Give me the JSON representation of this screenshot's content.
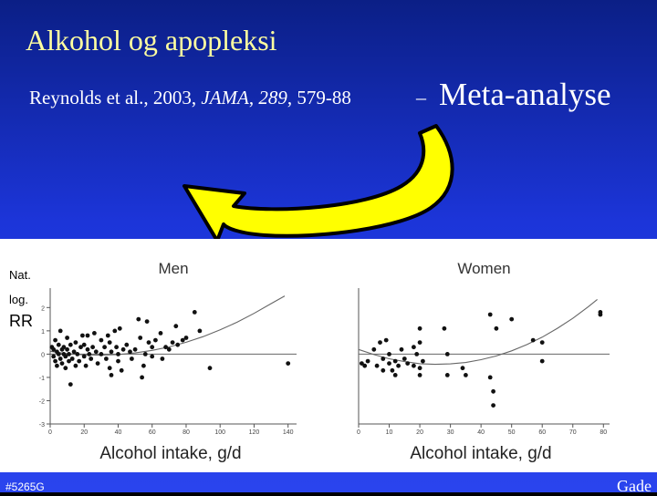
{
  "slide": {
    "title": "Alkohol og apopleksi",
    "reference": {
      "authors": "Reynolds et al., 2003, ",
      "journal": "JAMA",
      "sep1": ", ",
      "volume": "289",
      "pages": ", 579-88"
    },
    "dash": "–",
    "meta_label": "Meta-analyse",
    "footer_left": "#5265G",
    "footer_right": "Gade"
  },
  "arrow": {
    "color": "#ffff00",
    "outline": "#000000",
    "meaning": "curved arrow pointing from Meta-analyse to the plots"
  },
  "figure": {
    "y_label_lines": [
      "Nat.",
      "log.",
      "RR"
    ],
    "x_label": "Alcohol intake, g/d"
  },
  "chart_data": [
    {
      "type": "scatter",
      "title": "Men",
      "xlabel": "Alcohol intake, g/d",
      "ylabel": "Nat. log. RR",
      "xlim": [
        0,
        145
      ],
      "ylim": [
        -3,
        2.6
      ],
      "x_ticks": [
        "0",
        "20",
        "40",
        "60",
        "80",
        "100",
        "120",
        "140"
      ],
      "y_ticks": [
        "2",
        "1",
        "0",
        "-1",
        "-2",
        "-3"
      ],
      "grid": false,
      "reference_line_y": 0,
      "curve": [
        [
          0,
          0.12
        ],
        [
          10,
          0.02
        ],
        [
          20,
          -0.03
        ],
        [
          30,
          -0.04
        ],
        [
          40,
          -0.02
        ],
        [
          50,
          0.05
        ],
        [
          60,
          0.16
        ],
        [
          70,
          0.31
        ],
        [
          80,
          0.51
        ],
        [
          90,
          0.75
        ],
        [
          100,
          1.04
        ],
        [
          110,
          1.37
        ],
        [
          120,
          1.75
        ],
        [
          130,
          2.17
        ],
        [
          138,
          2.5
        ]
      ],
      "points": [
        [
          1,
          0.3
        ],
        [
          2,
          -0.1
        ],
        [
          2,
          0.2
        ],
        [
          3,
          -0.3
        ],
        [
          3,
          0.6
        ],
        [
          4,
          0.1
        ],
        [
          4,
          -0.5
        ],
        [
          5,
          0.0
        ],
        [
          5,
          0.4
        ],
        [
          6,
          -0.2
        ],
        [
          6,
          1.0
        ],
        [
          7,
          0.2
        ],
        [
          7,
          -0.4
        ],
        [
          8,
          0.0
        ],
        [
          8,
          0.3
        ],
        [
          9,
          -0.1
        ],
        [
          9,
          -0.6
        ],
        [
          10,
          0.2
        ],
        [
          10,
          0.7
        ],
        [
          11,
          -0.3
        ],
        [
          11,
          0.0
        ],
        [
          12,
          -1.3
        ],
        [
          12,
          0.4
        ],
        [
          13,
          -0.2
        ],
        [
          14,
          0.1
        ],
        [
          15,
          0.5
        ],
        [
          15,
          -0.5
        ],
        [
          16,
          0.0
        ],
        [
          17,
          -0.3
        ],
        [
          18,
          0.3
        ],
        [
          19,
          0.8
        ],
        [
          20,
          -0.1
        ],
        [
          20,
          0.4
        ],
        [
          21,
          -0.5
        ],
        [
          22,
          0.2
        ],
        [
          22,
          0.8
        ],
        [
          23,
          0.0
        ],
        [
          24,
          -0.2
        ],
        [
          25,
          0.3
        ],
        [
          26,
          0.9
        ],
        [
          27,
          0.1
        ],
        [
          28,
          -0.4
        ],
        [
          30,
          0.6
        ],
        [
          30,
          0.0
        ],
        [
          32,
          0.3
        ],
        [
          33,
          -0.2
        ],
        [
          34,
          0.8
        ],
        [
          35,
          0.5
        ],
        [
          35,
          -0.6
        ],
        [
          36,
          0.1
        ],
        [
          36,
          -0.9
        ],
        [
          38,
          1.0
        ],
        [
          39,
          0.3
        ],
        [
          40,
          0.0
        ],
        [
          40,
          -0.3
        ],
        [
          41,
          1.1
        ],
        [
          42,
          -0.7
        ],
        [
          43,
          0.2
        ],
        [
          45,
          0.4
        ],
        [
          47,
          0.1
        ],
        [
          48,
          -0.2
        ],
        [
          50,
          0.2
        ],
        [
          52,
          1.5
        ],
        [
          53,
          0.7
        ],
        [
          54,
          -1.0
        ],
        [
          55,
          -0.5
        ],
        [
          56,
          0.0
        ],
        [
          57,
          1.4
        ],
        [
          58,
          0.5
        ],
        [
          60,
          0.3
        ],
        [
          60,
          -0.1
        ],
        [
          62,
          0.6
        ],
        [
          65,
          0.9
        ],
        [
          66,
          -0.2
        ],
        [
          68,
          0.3
        ],
        [
          70,
          0.2
        ],
        [
          72,
          0.5
        ],
        [
          74,
          1.2
        ],
        [
          75,
          0.4
        ],
        [
          78,
          0.6
        ],
        [
          80,
          0.7
        ],
        [
          85,
          1.8
        ],
        [
          88,
          1.0
        ],
        [
          94,
          -0.6
        ],
        [
          140,
          -0.4
        ]
      ]
    },
    {
      "type": "scatter",
      "title": "Women",
      "xlabel": "Alcohol intake, g/d",
      "ylabel": "",
      "xlim": [
        0,
        82
      ],
      "ylim": [
        -3,
        2.6
      ],
      "x_ticks": [
        "0",
        "10",
        "20",
        "30",
        "40",
        "50",
        "60",
        "70",
        "80"
      ],
      "y_ticks": [],
      "grid": false,
      "reference_line_y": 0,
      "curve": [
        [
          0,
          0.2
        ],
        [
          5,
          -0.02
        ],
        [
          10,
          -0.2
        ],
        [
          15,
          -0.32
        ],
        [
          20,
          -0.41
        ],
        [
          25,
          -0.44
        ],
        [
          30,
          -0.42
        ],
        [
          35,
          -0.36
        ],
        [
          40,
          -0.24
        ],
        [
          45,
          -0.08
        ],
        [
          50,
          0.14
        ],
        [
          55,
          0.41
        ],
        [
          60,
          0.73
        ],
        [
          65,
          1.11
        ],
        [
          70,
          1.54
        ],
        [
          75,
          2.03
        ],
        [
          78,
          2.35
        ]
      ],
      "points": [
        [
          1,
          -0.4
        ],
        [
          2,
          -0.5
        ],
        [
          3,
          -0.3
        ],
        [
          5,
          0.2
        ],
        [
          6,
          -0.5
        ],
        [
          7,
          0.5
        ],
        [
          8,
          -0.7
        ],
        [
          8,
          -0.2
        ],
        [
          9,
          0.6
        ],
        [
          10,
          0.0
        ],
        [
          10,
          -0.4
        ],
        [
          11,
          -0.7
        ],
        [
          12,
          -0.9
        ],
        [
          12,
          -0.3
        ],
        [
          13,
          -0.5
        ],
        [
          14,
          0.2
        ],
        [
          15,
          -0.2
        ],
        [
          16,
          -0.4
        ],
        [
          18,
          -0.5
        ],
        [
          18,
          0.3
        ],
        [
          19,
          0.0
        ],
        [
          20,
          0.5
        ],
        [
          20,
          -0.6
        ],
        [
          20,
          -0.9
        ],
        [
          20,
          1.1
        ],
        [
          21,
          -0.3
        ],
        [
          28,
          1.1
        ],
        [
          29,
          0.0
        ],
        [
          29,
          -0.9
        ],
        [
          34,
          -0.6
        ],
        [
          35,
          -0.9
        ],
        [
          43,
          -1.0
        ],
        [
          44,
          -1.6
        ],
        [
          44,
          -2.2
        ],
        [
          43,
          1.7
        ],
        [
          45,
          1.1
        ],
        [
          50,
          1.5
        ],
        [
          57,
          0.6
        ],
        [
          60,
          0.5
        ],
        [
          60,
          -0.3
        ],
        [
          79,
          1.8
        ],
        [
          79,
          1.7
        ]
      ]
    }
  ]
}
